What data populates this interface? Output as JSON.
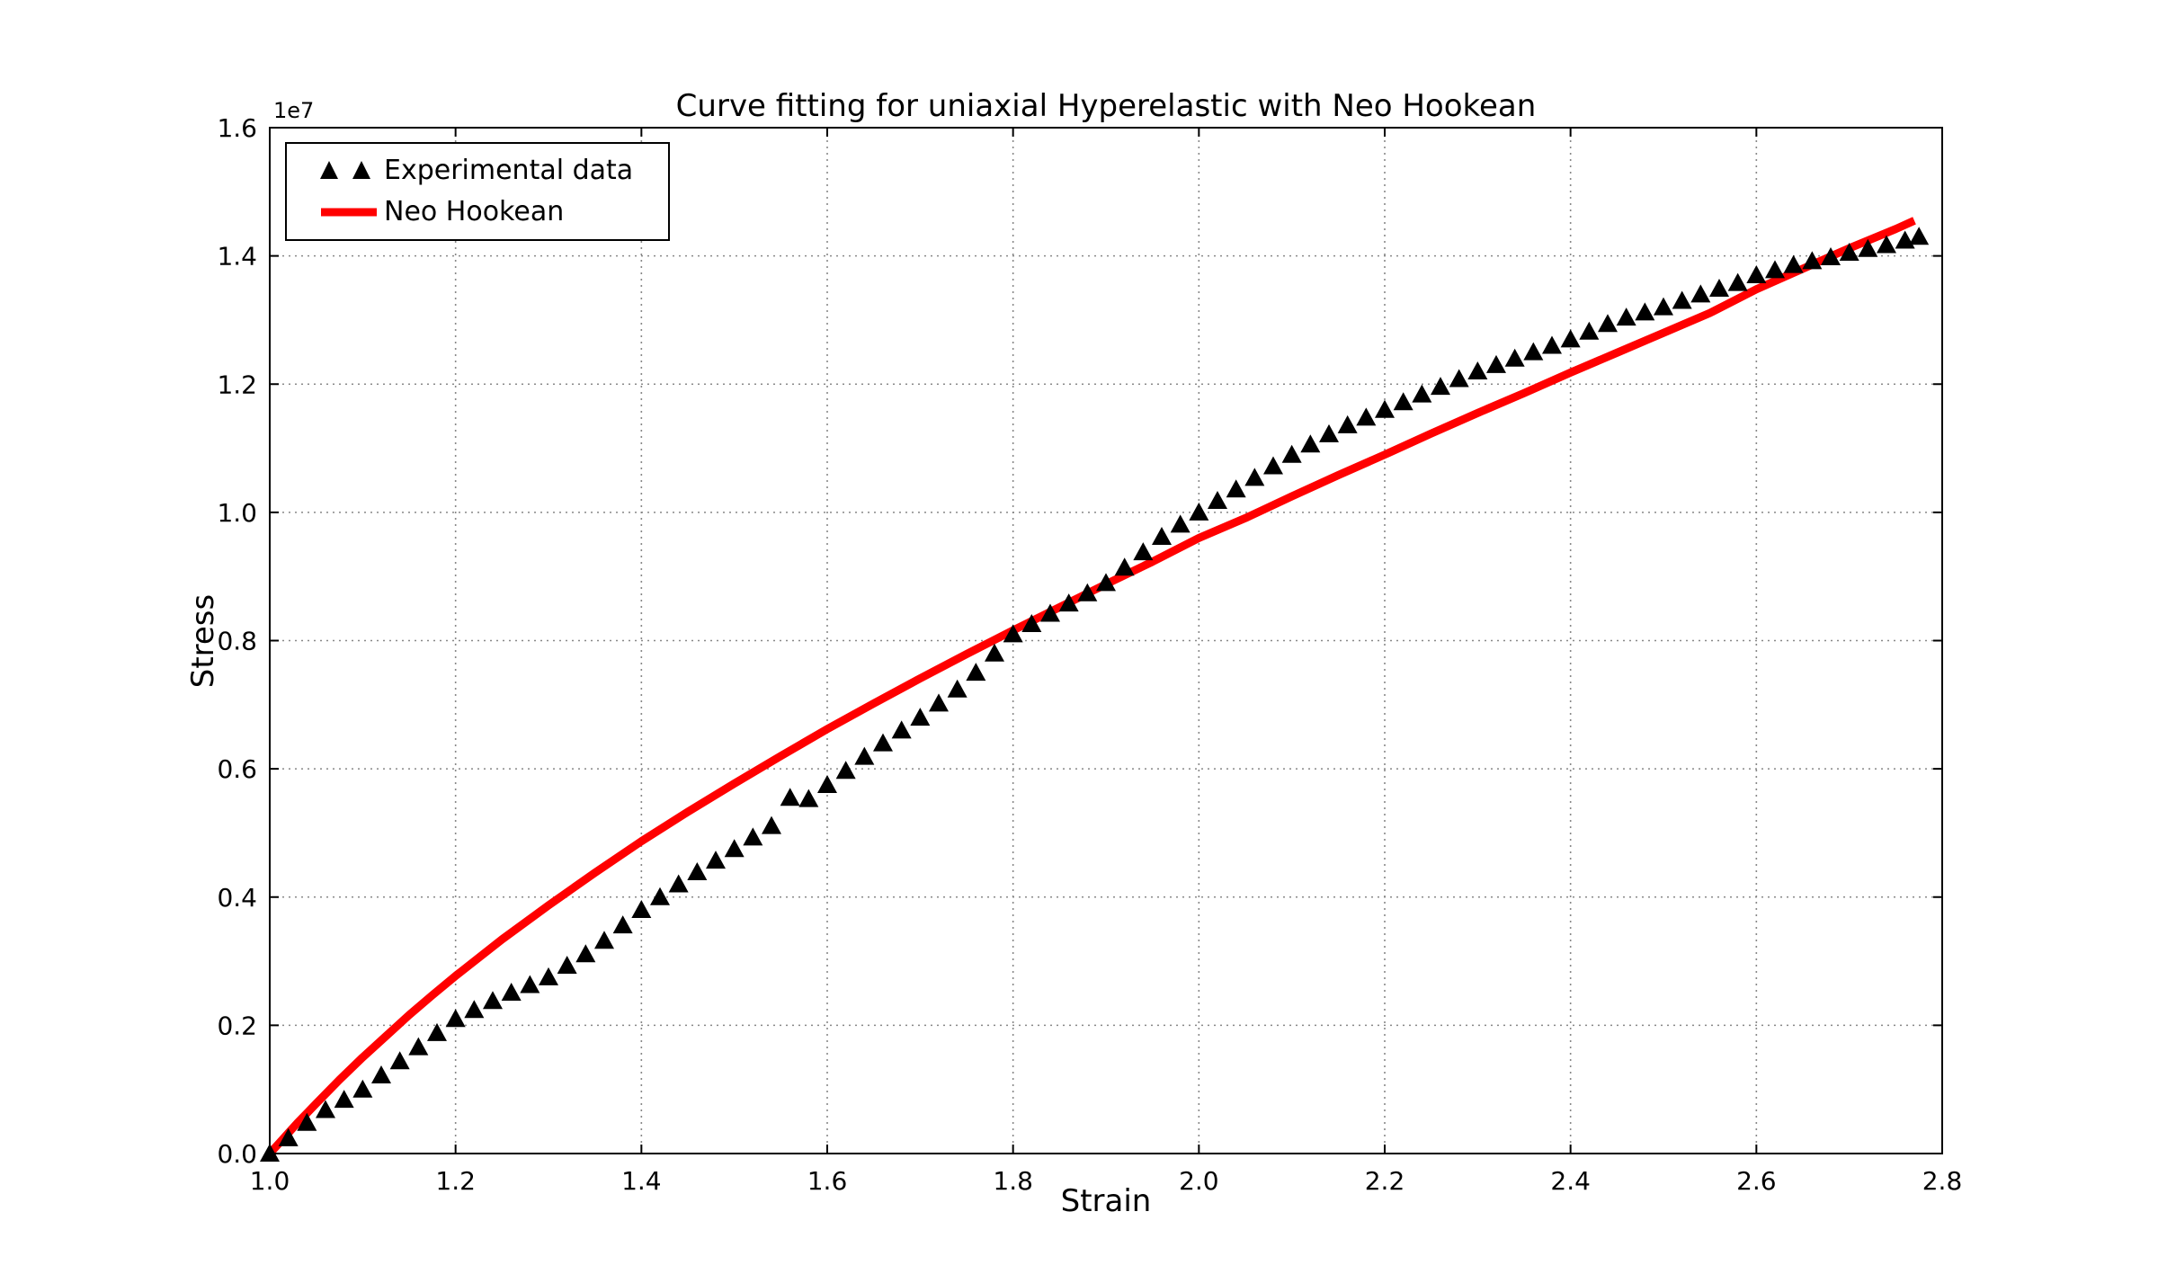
{
  "chart": {
    "title": "Curve fitting for uniaxial Hyperelastic with Neo Hookean",
    "xlabel": "Strain",
    "ylabel": "Stress",
    "y_offset_text": "1e7"
  },
  "legend": {
    "items": [
      {
        "label": "Experimental data",
        "marker": "triangle-up",
        "color": "#000000"
      },
      {
        "label": "Neo Hookean",
        "marker": "line",
        "color": "#ff0000"
      }
    ]
  },
  "chart_data": {
    "type": "scatter",
    "title": "Curve fitting for uniaxial Hyperelastic with Neo Hookean",
    "xlabel": "Strain",
    "ylabel": "Stress",
    "xlim": [
      1.0,
      2.8
    ],
    "ylim": [
      0.0,
      1.6
    ],
    "y_scale_note": "y values are in units of 1e7 (axis offset label 1e7)",
    "y_unit_multiplier": 10000000,
    "grid": true,
    "grid_color": "#888888",
    "grid_style": "dotted",
    "legend_position": "upper left",
    "xticks": {
      "values": [
        1.0,
        1.2,
        1.4,
        1.6,
        1.8,
        2.0,
        2.2,
        2.4,
        2.6,
        2.8
      ],
      "labels": [
        "1.0",
        "1.2",
        "1.4",
        "1.6",
        "1.8",
        "2.0",
        "2.2",
        "2.4",
        "2.6",
        "2.8"
      ]
    },
    "yticks": {
      "values": [
        0.0,
        0.2,
        0.4,
        0.6,
        0.8,
        1.0,
        1.2,
        1.4,
        1.6
      ],
      "labels": [
        "0.0",
        "0.2",
        "0.4",
        "0.6",
        "0.8",
        "1.0",
        "1.2",
        "1.4",
        "1.6"
      ]
    },
    "series": [
      {
        "name": "Experimental data",
        "type": "scatter",
        "marker": "triangle-up",
        "color": "#000000",
        "x": [
          1.0,
          1.02,
          1.04,
          1.06,
          1.08,
          1.1,
          1.12,
          1.14,
          1.16,
          1.18,
          1.2,
          1.22,
          1.24,
          1.26,
          1.28,
          1.3,
          1.32,
          1.34,
          1.36,
          1.38,
          1.4,
          1.42,
          1.44,
          1.46,
          1.48,
          1.5,
          1.52,
          1.54,
          1.56,
          1.58,
          1.6,
          1.62,
          1.64,
          1.66,
          1.68,
          1.7,
          1.72,
          1.74,
          1.76,
          1.78,
          1.8,
          1.82,
          1.84,
          1.86,
          1.88,
          1.9,
          1.92,
          1.94,
          1.96,
          1.98,
          2.0,
          2.02,
          2.04,
          2.06,
          2.08,
          2.1,
          2.12,
          2.14,
          2.16,
          2.18,
          2.2,
          2.22,
          2.24,
          2.26,
          2.28,
          2.3,
          2.32,
          2.34,
          2.36,
          2.38,
          2.4,
          2.42,
          2.44,
          2.46,
          2.48,
          2.5,
          2.52,
          2.54,
          2.56,
          2.58,
          2.6,
          2.62,
          2.64,
          2.66,
          2.68,
          2.7,
          2.72,
          2.74,
          2.76,
          2.775
        ],
        "y": [
          0.0,
          0.024,
          0.048,
          0.068,
          0.084,
          0.1,
          0.122,
          0.144,
          0.166,
          0.188,
          0.21,
          0.224,
          0.238,
          0.251,
          0.263,
          0.275,
          0.293,
          0.311,
          0.332,
          0.356,
          0.38,
          0.4,
          0.42,
          0.439,
          0.457,
          0.475,
          0.493,
          0.511,
          0.555,
          0.553,
          0.575,
          0.597,
          0.619,
          0.64,
          0.66,
          0.68,
          0.702,
          0.724,
          0.75,
          0.78,
          0.81,
          0.826,
          0.842,
          0.858,
          0.874,
          0.89,
          0.914,
          0.938,
          0.962,
          0.981,
          1.0,
          1.018,
          1.036,
          1.054,
          1.072,
          1.09,
          1.106,
          1.122,
          1.136,
          1.148,
          1.16,
          1.172,
          1.184,
          1.196,
          1.208,
          1.22,
          1.23,
          1.24,
          1.25,
          1.26,
          1.27,
          1.282,
          1.294,
          1.304,
          1.312,
          1.32,
          1.33,
          1.34,
          1.349,
          1.358,
          1.37,
          1.378,
          1.386,
          1.392,
          1.398,
          1.405,
          1.411,
          1.417,
          1.424,
          1.43
        ]
      },
      {
        "name": "Neo Hookean",
        "type": "line",
        "color": "#ff0000",
        "line_width": 9,
        "x": [
          1.0,
          1.01,
          1.02,
          1.03,
          1.04,
          1.05,
          1.075,
          1.1,
          1.125,
          1.15,
          1.175,
          1.2,
          1.25,
          1.3,
          1.35,
          1.4,
          1.45,
          1.5,
          1.55,
          1.6,
          1.65,
          1.7,
          1.75,
          1.8,
          1.85,
          1.9,
          1.95,
          2.0,
          2.05,
          2.1,
          2.15,
          2.2,
          2.25,
          2.3,
          2.35,
          2.4,
          2.45,
          2.5,
          2.55,
          2.6,
          2.65,
          2.7,
          2.75,
          2.77
        ],
        "y": [
          0.0,
          0.016,
          0.032,
          0.048,
          0.063,
          0.078,
          0.115,
          0.15,
          0.183,
          0.216,
          0.247,
          0.277,
          0.334,
          0.387,
          0.438,
          0.487,
          0.533,
          0.577,
          0.62,
          0.662,
          0.702,
          0.741,
          0.779,
          0.816,
          0.852,
          0.888,
          0.923,
          0.96,
          0.991,
          1.025,
          1.058,
          1.09,
          1.123,
          1.155,
          1.186,
          1.218,
          1.249,
          1.28,
          1.311,
          1.348,
          1.38,
          1.412,
          1.442,
          1.455
        ]
      }
    ]
  }
}
